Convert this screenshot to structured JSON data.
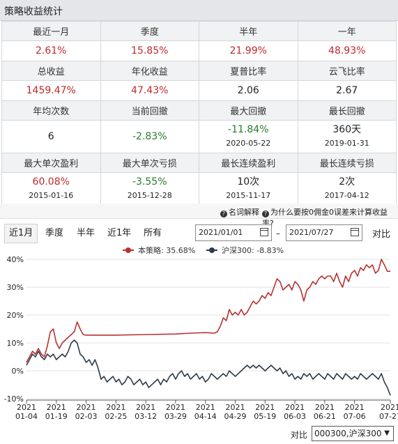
{
  "title": "策略收益统计",
  "stats": {
    "row1_headers": [
      "最近一月",
      "季度",
      "半年",
      "一年"
    ],
    "row1_values": [
      "2.61%",
      "15.85%",
      "21.99%",
      "48.93%"
    ],
    "row2_headers": [
      "总收益",
      "年化收益",
      "夏普比率",
      "云飞比率"
    ],
    "row2_values": [
      "1459.47%",
      "47.43%",
      "2.06",
      "2.67"
    ],
    "row3_headers": [
      "年均次数",
      "当前回撤",
      "最大回撤",
      "最长回撤"
    ],
    "row3_values": [
      {
        "value": "6",
        "date": ""
      },
      {
        "value": "-2.83%",
        "date": ""
      },
      {
        "value": "-11.84%",
        "date": "2020-05-22"
      },
      {
        "value": "360天",
        "date": "2019-01-31"
      }
    ],
    "row4_headers": [
      "最大单次盈利",
      "最大单次亏损",
      "最长连续盈利",
      "最长连续亏损"
    ],
    "row4_values": [
      {
        "value": "60.08%",
        "date": "2015-01-16"
      },
      {
        "value": "-3.55%",
        "date": "2015-12-28"
      },
      {
        "value": "10次",
        "date": "2015-11-17"
      },
      {
        "value": "2次",
        "date": "2017-04-12"
      }
    ]
  },
  "notes": {
    "glossary": "名词解释",
    "why": "为什么要按0佣金0误差来计算收益率?"
  },
  "controls": {
    "periods": [
      "近1月",
      "季度",
      "半年",
      "近1年",
      "所有"
    ],
    "start_date": "2021/01/01",
    "end_date": "2021/07/27",
    "dash": "–",
    "compare": "对比"
  },
  "footer": {
    "compare_label": "对比",
    "compare_value": "000300,沪深300"
  },
  "colors": {
    "strategy": "#b83232",
    "benchmark": "#2e3b4a",
    "positive": "#c0282d",
    "negative": "#2a7a2a"
  },
  "chart_data": {
    "type": "line",
    "legend_position": "top-center",
    "series": [
      {
        "name": "本策略: 35.68%",
        "points": [
          [
            0,
            3
          ],
          [
            1,
            5
          ],
          [
            2,
            7
          ],
          [
            3,
            6
          ],
          [
            4,
            8
          ],
          [
            5,
            6
          ],
          [
            6,
            5
          ],
          [
            7,
            9
          ],
          [
            8,
            14
          ],
          [
            9,
            15
          ],
          [
            10,
            10
          ],
          [
            11,
            8
          ],
          [
            12,
            10
          ],
          [
            13,
            11
          ],
          [
            14,
            12
          ],
          [
            15,
            13
          ],
          [
            16,
            14
          ],
          [
            17,
            17.5
          ],
          [
            18,
            15
          ],
          [
            19,
            13
          ],
          [
            20,
            12.8
          ],
          [
            30,
            12.8
          ],
          [
            40,
            13
          ],
          [
            50,
            13.2
          ],
          [
            55,
            13.5
          ],
          [
            60,
            13.7
          ],
          [
            63,
            13.5
          ],
          [
            64,
            14
          ],
          [
            65,
            16
          ],
          [
            66,
            19
          ],
          [
            67,
            18
          ],
          [
            68,
            22
          ],
          [
            69,
            20
          ],
          [
            70,
            21
          ],
          [
            71,
            20
          ],
          [
            72,
            22
          ],
          [
            73,
            20
          ],
          [
            74,
            21
          ],
          [
            75,
            23
          ],
          [
            76,
            25
          ],
          [
            77,
            24
          ],
          [
            78,
            25
          ],
          [
            79,
            27
          ],
          [
            80,
            26
          ],
          [
            81,
            28
          ],
          [
            82,
            27
          ],
          [
            83,
            30
          ],
          [
            84,
            33
          ],
          [
            85,
            32
          ],
          [
            86,
            29
          ],
          [
            87,
            30
          ],
          [
            88,
            31
          ],
          [
            89,
            29
          ],
          [
            90,
            32
          ],
          [
            91,
            31
          ],
          [
            92,
            29
          ],
          [
            93,
            25
          ],
          [
            94,
            29
          ],
          [
            95,
            30
          ],
          [
            96,
            32
          ],
          [
            97,
            31
          ],
          [
            98,
            33
          ],
          [
            99,
            34
          ],
          [
            100,
            33
          ],
          [
            101,
            34
          ],
          [
            102,
            34
          ],
          [
            103,
            32
          ],
          [
            104,
            35
          ],
          [
            105,
            32
          ],
          [
            106,
            30
          ],
          [
            107,
            34
          ],
          [
            108,
            32
          ],
          [
            109,
            35
          ],
          [
            110,
            36
          ],
          [
            111,
            34
          ],
          [
            112,
            37
          ],
          [
            113,
            36
          ],
          [
            114,
            38
          ],
          [
            115,
            37
          ],
          [
            116,
            38
          ],
          [
            117,
            35
          ],
          [
            118,
            36
          ],
          [
            119,
            40
          ],
          [
            120,
            38
          ],
          [
            121,
            35.7
          ],
          [
            122,
            35.7
          ]
        ]
      },
      {
        "name": "沪深300: -8.83%",
        "points": [
          [
            0,
            2
          ],
          [
            1,
            4
          ],
          [
            2,
            6
          ],
          [
            3,
            5
          ],
          [
            4,
            7
          ],
          [
            5,
            5
          ],
          [
            6,
            4
          ],
          [
            7,
            6
          ],
          [
            8,
            5
          ],
          [
            9,
            6
          ],
          [
            10,
            4
          ],
          [
            11,
            5
          ],
          [
            12,
            6
          ],
          [
            13,
            5
          ],
          [
            14,
            7
          ],
          [
            15,
            10
          ],
          [
            16,
            11
          ],
          [
            17,
            10
          ],
          [
            18,
            6
          ],
          [
            19,
            5
          ],
          [
            20,
            3
          ],
          [
            21,
            4
          ],
          [
            22,
            2
          ],
          [
            23,
            4
          ],
          [
            24,
            1
          ],
          [
            25,
            -3
          ],
          [
            26,
            -2
          ],
          [
            27,
            -4
          ],
          [
            28,
            -3
          ],
          [
            29,
            -2
          ],
          [
            30,
            -4
          ],
          [
            31,
            -3
          ],
          [
            32,
            -5
          ],
          [
            33,
            -4
          ],
          [
            34,
            -2
          ],
          [
            35,
            -3
          ],
          [
            36,
            -5
          ],
          [
            37,
            -4
          ],
          [
            38,
            -3
          ],
          [
            39,
            -5
          ],
          [
            40,
            -4
          ],
          [
            41,
            -6
          ],
          [
            42,
            -5
          ],
          [
            43,
            -4
          ],
          [
            44,
            -3
          ],
          [
            45,
            -5
          ],
          [
            46,
            -3
          ],
          [
            47,
            -4
          ],
          [
            48,
            -2
          ],
          [
            49,
            -1
          ],
          [
            50,
            -3
          ],
          [
            51,
            -1
          ],
          [
            52,
            0
          ],
          [
            53,
            -2
          ],
          [
            54,
            -1
          ],
          [
            55,
            -3
          ],
          [
            56,
            -2
          ],
          [
            57,
            -1
          ],
          [
            58,
            -3
          ],
          [
            59,
            -2
          ],
          [
            60,
            -4
          ],
          [
            61,
            -3
          ],
          [
            62,
            -1
          ],
          [
            63,
            -2
          ],
          [
            64,
            -3
          ],
          [
            65,
            -2
          ],
          [
            66,
            -1
          ],
          [
            67,
            -2
          ],
          [
            68,
            0
          ],
          [
            69,
            -1
          ],
          [
            70,
            -2
          ],
          [
            71,
            -1
          ],
          [
            72,
            0
          ],
          [
            73,
            1
          ],
          [
            74,
            2
          ],
          [
            75,
            1
          ],
          [
            76,
            2
          ],
          [
            77,
            1
          ],
          [
            78,
            2
          ],
          [
            79,
            1
          ],
          [
            80,
            0
          ],
          [
            81,
            1
          ],
          [
            82,
            2
          ],
          [
            83,
            1
          ],
          [
            84,
            0
          ],
          [
            85,
            1
          ],
          [
            86,
            -1
          ],
          [
            87,
            0
          ],
          [
            88,
            -2
          ],
          [
            89,
            -1
          ],
          [
            90,
            -3
          ],
          [
            91,
            -2
          ],
          [
            92,
            -3
          ],
          [
            93,
            -1
          ],
          [
            94,
            -2
          ],
          [
            95,
            -1
          ],
          [
            96,
            -3
          ],
          [
            97,
            -2
          ],
          [
            98,
            -1
          ],
          [
            99,
            -2
          ],
          [
            100,
            -3
          ],
          [
            101,
            -1
          ],
          [
            102,
            -2
          ],
          [
            103,
            -3
          ],
          [
            104,
            -1
          ],
          [
            105,
            -2
          ],
          [
            106,
            -3
          ],
          [
            107,
            -1
          ],
          [
            108,
            -2
          ],
          [
            109,
            -3
          ],
          [
            110,
            -2
          ],
          [
            111,
            -3
          ],
          [
            112,
            -1
          ],
          [
            113,
            -2
          ],
          [
            114,
            -3
          ],
          [
            115,
            -2
          ],
          [
            116,
            -1
          ],
          [
            117,
            -2
          ],
          [
            118,
            -3
          ],
          [
            119,
            -1
          ],
          [
            120,
            -4
          ],
          [
            121,
            -6
          ],
          [
            122,
            -8.8
          ]
        ]
      }
    ],
    "x_ticks": [
      {
        "x": 0,
        "year": "2021",
        "md": "01-04"
      },
      {
        "x": 10,
        "year": "2021",
        "md": "01-19"
      },
      {
        "x": 20,
        "year": "2021",
        "md": "02-03"
      },
      {
        "x": 30,
        "year": "2021",
        "md": "02-25"
      },
      {
        "x": 40,
        "year": "2021",
        "md": "03-12"
      },
      {
        "x": 50,
        "year": "2021",
        "md": "03-29"
      },
      {
        "x": 60,
        "year": "2021",
        "md": "04-14"
      },
      {
        "x": 70,
        "year": "2021",
        "md": "04-29"
      },
      {
        "x": 80,
        "year": "2021",
        "md": "05-19"
      },
      {
        "x": 90,
        "year": "2021",
        "md": "06-03"
      },
      {
        "x": 100,
        "year": "2021",
        "md": "06-21"
      },
      {
        "x": 110,
        "year": "2021",
        "md": "07-06"
      },
      {
        "x": 122,
        "year": "2021",
        "md": "07-27"
      }
    ],
    "y_ticks": [
      "40%",
      "30%",
      "20%",
      "10%",
      "0%",
      "-10%"
    ],
    "y_tick_values": [
      40,
      30,
      20,
      10,
      0,
      -10
    ],
    "xlim": [
      0,
      122
    ],
    "ylim": [
      -10,
      40
    ],
    "grid": "horizontal"
  }
}
